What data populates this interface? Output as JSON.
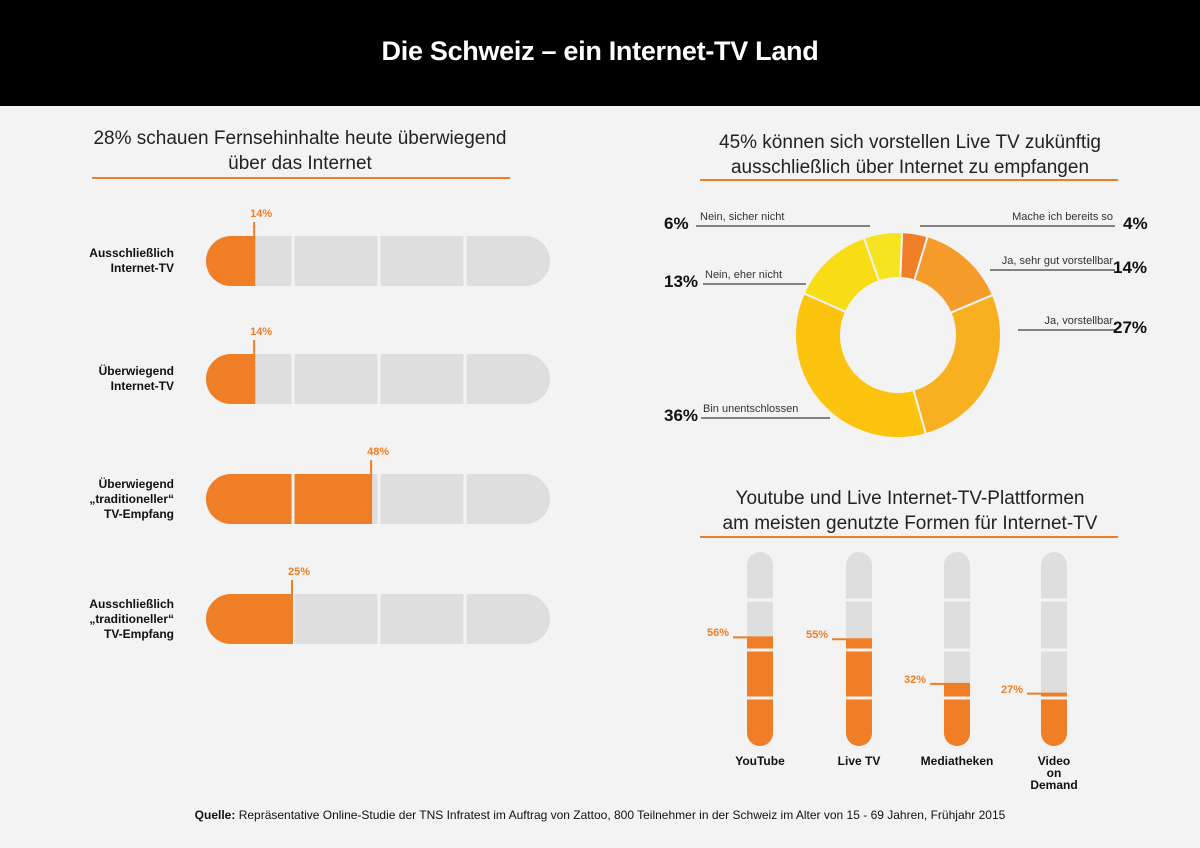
{
  "title": "Die Schweiz – ein Internet-TV Land",
  "left_title": [
    "28% schauen Fernsehinhalte heute überwiegend",
    "über das Internet"
  ],
  "donut_title": [
    "45% können sich vorstellen Live TV zukünftig",
    "ausschließlich über Internet zu empfangen"
  ],
  "vbar_title": [
    "Youtube und Live Internet-TV-Plattformen",
    "am meisten genutzte Formen für Internet-TV"
  ],
  "source_bold": "Quelle:",
  "source_text": " Repräsentative Online-Studie der TNS Infratest im Auftrag von Zattoo, 800 Teilnehmer in der Schweiz im Alter von 15 - 69 Jahren, Frühjahr 2015",
  "colors": {
    "orange": "#f07e26",
    "grey": "#dedede",
    "accent": "#f07e26"
  },
  "chart_data": [
    {
      "type": "bar",
      "orientation": "horizontal",
      "categories": [
        [
          "Ausschließlich",
          "Internet-TV"
        ],
        [
          "Überwiegend",
          "Internet-TV"
        ],
        [
          "Überwiegend",
          "„traditioneller“",
          "TV-Empfang"
        ],
        [
          "Ausschließlich",
          "„traditioneller“",
          "TV-Empfang"
        ]
      ],
      "values": [
        14,
        14,
        48,
        25
      ],
      "value_labels": [
        "14%",
        "14%",
        "48%",
        "25%"
      ],
      "ylim": [
        0,
        100
      ]
    },
    {
      "type": "pie",
      "donut": true,
      "slices": [
        {
          "label": "Mache ich bereits so",
          "value": 4,
          "value_label": "4%",
          "color": "#f07e26"
        },
        {
          "label": "Ja, sehr gut vorstellbar",
          "value": 14,
          "value_label": "14%",
          "color": "#f59b2a"
        },
        {
          "label": "Ja, vorstellbar",
          "value": 27,
          "value_label": "27%",
          "color": "#f9b020"
        },
        {
          "label": "Bin unentschlossen",
          "value": 36,
          "value_label": "36%",
          "color": "#fcc30f"
        },
        {
          "label": "Nein, eher nicht",
          "value": 13,
          "value_label": "13%",
          "color": "#f8dc14"
        },
        {
          "label": "Nein, sicher nicht",
          "value": 6,
          "value_label": "6%",
          "color": "#f5e41f"
        }
      ]
    },
    {
      "type": "bar",
      "orientation": "vertical",
      "categories": [
        [
          "YouTube"
        ],
        [
          "Live TV"
        ],
        [
          "Mediatheken"
        ],
        [
          "Video",
          "on",
          "Demand"
        ]
      ],
      "values": [
        56,
        55,
        32,
        27
      ],
      "value_labels": [
        "56%",
        "55%",
        "32%",
        "27%"
      ],
      "ylim": [
        0,
        100
      ]
    }
  ]
}
